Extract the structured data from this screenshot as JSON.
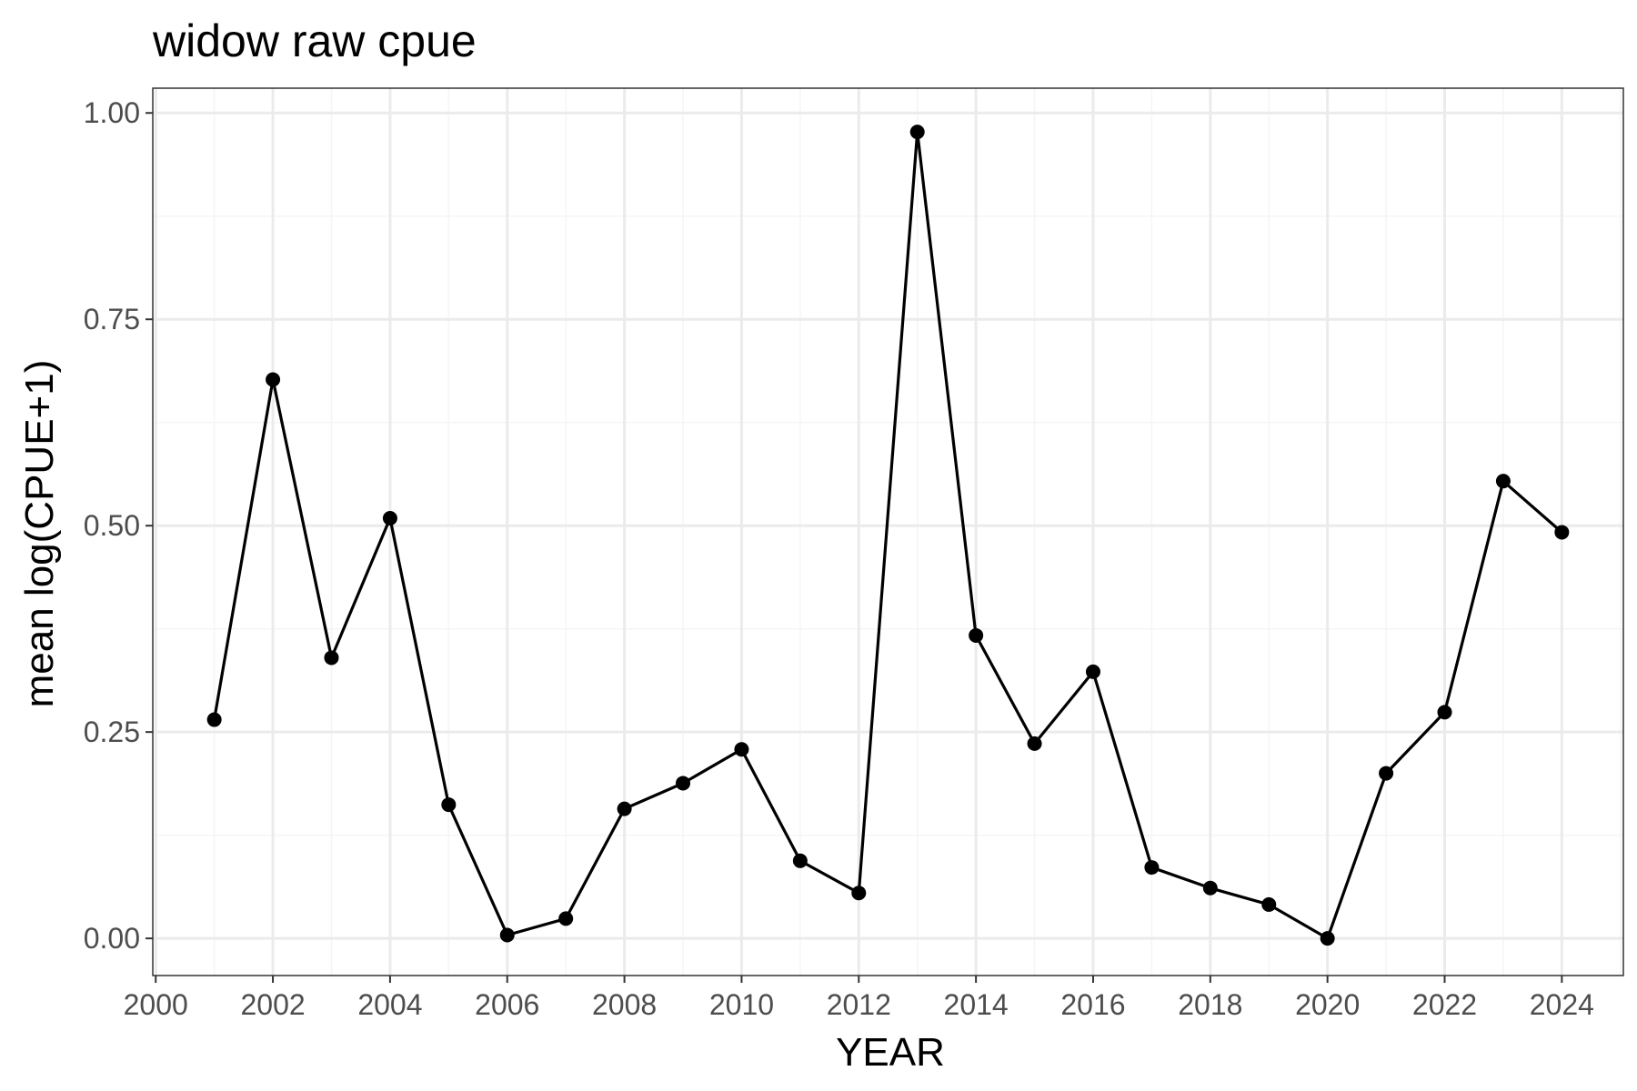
{
  "chart_data": {
    "type": "line",
    "title": "widow raw cpue",
    "xlabel": "YEAR",
    "ylabel": "mean log(CPUE+1)",
    "xlim": [
      1999.95,
      2025.05
    ],
    "ylim": [
      -0.045,
      1.03
    ],
    "xticks": [
      2000,
      2002,
      2004,
      2006,
      2008,
      2010,
      2012,
      2014,
      2016,
      2018,
      2020,
      2022,
      2024
    ],
    "xtick_labels": [
      "2000",
      "2002",
      "2004",
      "2006",
      "2008",
      "2010",
      "2012",
      "2014",
      "2016",
      "2018",
      "2020",
      "2022",
      "2024"
    ],
    "yticks": [
      0,
      0.25,
      0.5,
      0.75,
      1.0
    ],
    "ytick_labels": [
      "0.00",
      "0.25",
      "0.50",
      "0.75",
      "1.00"
    ],
    "grid": true,
    "series": [
      {
        "x": [
          2001,
          2002,
          2003,
          2004,
          2005,
          2006,
          2007,
          2008,
          2009,
          2010,
          2011,
          2012,
          2013,
          2014,
          2015,
          2016,
          2017,
          2018,
          2019,
          2020,
          2021,
          2022,
          2023,
          2024
        ],
        "values": [
          0.265,
          0.677,
          0.34,
          0.509,
          0.162,
          0.004,
          0.024,
          0.157,
          0.188,
          0.229,
          0.094,
          0.055,
          0.977,
          0.367,
          0.236,
          0.323,
          0.086,
          0.061,
          0.041,
          0.0,
          0.2,
          0.274,
          0.554,
          0.492
        ]
      }
    ],
    "colors": {
      "line": "#000000",
      "panel_border": "#333333",
      "grid_major": "#ebebeb",
      "grid_minor": "#f5f5f5"
    }
  }
}
